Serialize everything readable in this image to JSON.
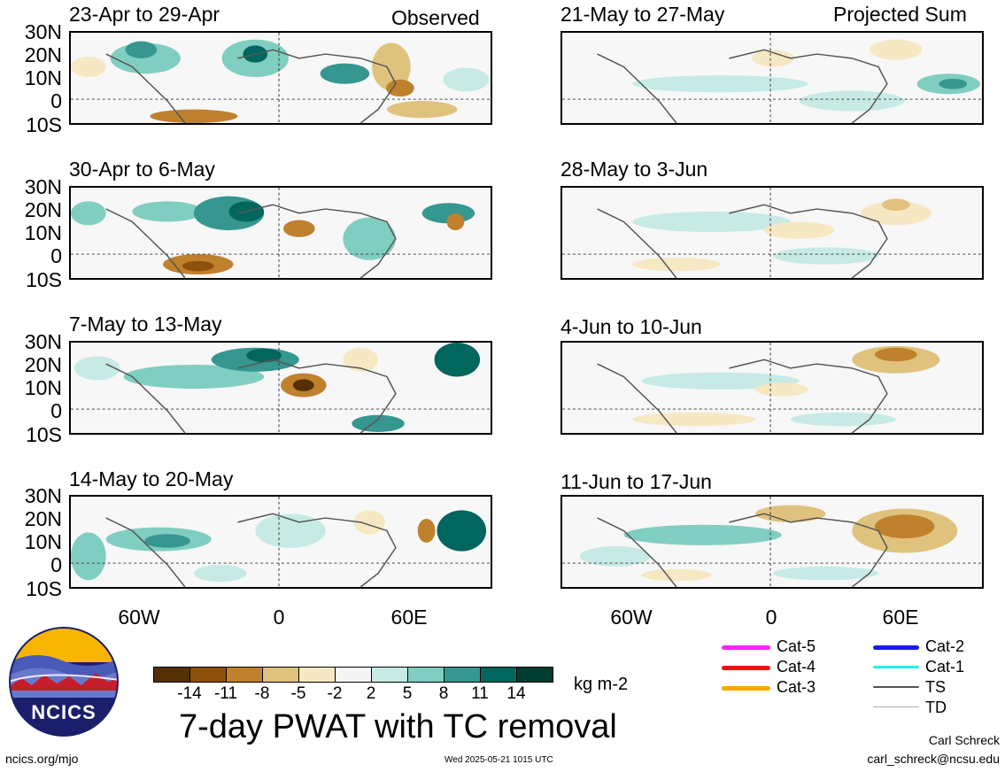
{
  "panels": [
    {
      "title": "23-Apr to 29-Apr",
      "corner": "Observed"
    },
    {
      "title": "30-Apr to 6-May",
      "corner": ""
    },
    {
      "title": "7-May to 13-May",
      "corner": ""
    },
    {
      "title": "14-May to 20-May",
      "corner": ""
    },
    {
      "title": "21-May to 27-May",
      "corner": "Projected Sum"
    },
    {
      "title": "28-May to 3-Jun",
      "corner": ""
    },
    {
      "title": "4-Jun to 10-Jun",
      "corner": ""
    },
    {
      "title": "11-Jun to 17-Jun",
      "corner": ""
    }
  ],
  "lat_labels": [
    "30N",
    "20N",
    "10N",
    "0",
    "10S"
  ],
  "lon_labels": [
    "60W",
    "0",
    "60E"
  ],
  "colorbar": {
    "ticks": [
      "-14",
      "-11",
      "-8",
      "-5",
      "-2",
      "2",
      "5",
      "8",
      "11",
      "14"
    ],
    "colors": [
      "#543005",
      "#8c510a",
      "#bf812d",
      "#dfc27d",
      "#f6e8c3",
      "#f5f5f5",
      "#c7eae5",
      "#80cdc1",
      "#35978f",
      "#01665e",
      "#003c30"
    ],
    "units": "kg m-2"
  },
  "main_title": "7-day PWAT with TC removal",
  "legend": [
    {
      "label": "Cat-5",
      "color": "#ff22ff"
    },
    {
      "label": "Cat-4",
      "color": "#ee1111"
    },
    {
      "label": "Cat-3",
      "color": "#ffa500"
    },
    {
      "label": "Cat-2",
      "color": "#1a1aee"
    },
    {
      "label": "Cat-1",
      "color": "#22eeee"
    },
    {
      "label": "TS",
      "color": "#555555"
    },
    {
      "label": "TD",
      "color": "#aaaaaa"
    }
  ],
  "logo_text": "NCICS",
  "footer": {
    "url": "ncics.org/mjo",
    "timestamp": "Wed 2025-05-21 1015 UTC",
    "author": "Carl Schreck",
    "email": "carl_schreck@ncsu.edu"
  }
}
